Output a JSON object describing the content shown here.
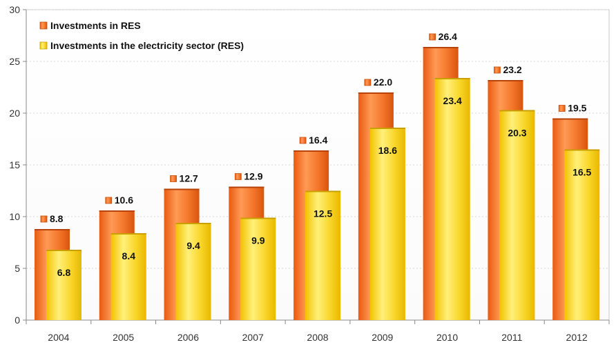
{
  "chart_data": {
    "type": "bar",
    "categories": [
      "2004",
      "2005",
      "2006",
      "2007",
      "2008",
      "2009",
      "2010",
      "2011",
      "2012"
    ],
    "series": [
      {
        "name": "Investments in RES",
        "values": [
          8.8,
          10.6,
          12.7,
          12.9,
          16.4,
          22.0,
          26.4,
          23.2,
          19.5
        ],
        "labels": [
          "8.8",
          "10.6",
          "12.7",
          "12.9",
          "16.4",
          "22.0",
          "26.4",
          "23.2",
          "19.5"
        ],
        "color": "#F07A2A"
      },
      {
        "name": "Investments in the electricity sector (RES)",
        "values": [
          6.8,
          8.4,
          9.4,
          9.9,
          12.5,
          18.6,
          23.4,
          20.3,
          16.5
        ],
        "labels": [
          "6.8",
          "8.4",
          "9.4",
          "9.9",
          "12.5",
          "18.6",
          "23.4",
          "20.3",
          "16.5"
        ],
        "color": "#F7D21C"
      }
    ],
    "ylim": [
      0,
      30
    ],
    "yticks": [
      "0",
      "5",
      "10",
      "15",
      "20",
      "25",
      "30"
    ],
    "ytick_values": [
      0,
      5,
      10,
      15,
      20,
      25,
      30
    ],
    "grid": true,
    "legend": "top-left",
    "title": "",
    "xlabel": "",
    "ylabel": ""
  }
}
